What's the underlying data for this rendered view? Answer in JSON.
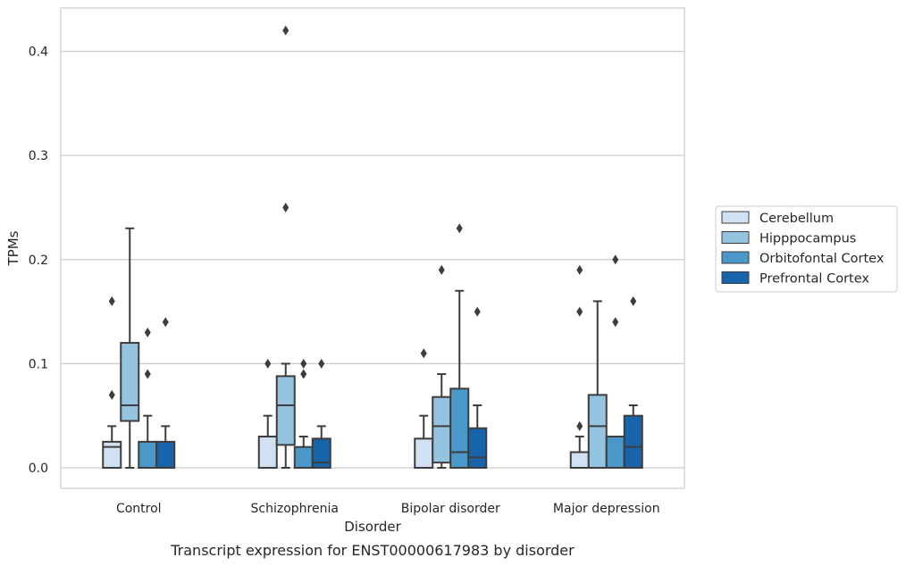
{
  "chart_data": {
    "type": "box",
    "caption": "Transcript expression for ENST00000617983 by disorder",
    "xlabel": "Disorder",
    "ylabel": "TPMs",
    "ylim": [
      -0.02,
      0.442
    ],
    "yticks": [
      0.0,
      0.1,
      0.2,
      0.3,
      0.4
    ],
    "ytick_labels": [
      "0.0",
      "0.1",
      "0.2",
      "0.3",
      "0.4"
    ],
    "grid": "horizontal",
    "legend_position": "right",
    "categories": [
      "Control",
      "Schizophrenia",
      "Bipolar disorder",
      "Major depression"
    ],
    "series": [
      {
        "name": "Cerebellum",
        "color": "#d0e1f2",
        "boxes": [
          {
            "whisker_low": 0.0,
            "q1": 0.0,
            "median": 0.02,
            "q3": 0.025,
            "whisker_high": 0.04,
            "outliers": [
              0.07,
              0.16
            ]
          },
          {
            "whisker_low": 0.0,
            "q1": 0.0,
            "median": 0.0,
            "q3": 0.03,
            "whisker_high": 0.05,
            "outliers": [
              0.1
            ]
          },
          {
            "whisker_low": 0.0,
            "q1": 0.0,
            "median": 0.0,
            "q3": 0.028,
            "whisker_high": 0.05,
            "outliers": [
              0.11
            ]
          },
          {
            "whisker_low": 0.0,
            "q1": 0.0,
            "median": 0.0,
            "q3": 0.015,
            "whisker_high": 0.03,
            "outliers": [
              0.04,
              0.15,
              0.19
            ]
          }
        ]
      },
      {
        "name": "Hipppocampus",
        "color": "#94c4df",
        "boxes": [
          {
            "whisker_low": 0.0,
            "q1": 0.045,
            "median": 0.06,
            "q3": 0.12,
            "whisker_high": 0.23,
            "outliers": []
          },
          {
            "whisker_low": 0.0,
            "q1": 0.022,
            "median": 0.06,
            "q3": 0.088,
            "whisker_high": 0.1,
            "outliers": [
              0.25,
              0.42
            ]
          },
          {
            "whisker_low": 0.0,
            "q1": 0.005,
            "median": 0.04,
            "q3": 0.068,
            "whisker_high": 0.09,
            "outliers": [
              0.19
            ]
          },
          {
            "whisker_low": 0.0,
            "q1": 0.0,
            "median": 0.04,
            "q3": 0.07,
            "whisker_high": 0.16,
            "outliers": []
          }
        ]
      },
      {
        "name": "Orbitofontal Cortex",
        "color": "#4a98c9",
        "boxes": [
          {
            "whisker_low": 0.0,
            "q1": 0.0,
            "median": 0.0,
            "q3": 0.025,
            "whisker_high": 0.05,
            "outliers": [
              0.09,
              0.13
            ]
          },
          {
            "whisker_low": 0.0,
            "q1": 0.0,
            "median": 0.0,
            "q3": 0.02,
            "whisker_high": 0.03,
            "outliers": [
              0.09,
              0.1
            ]
          },
          {
            "whisker_low": 0.0,
            "q1": 0.0,
            "median": 0.015,
            "q3": 0.076,
            "whisker_high": 0.17,
            "outliers": [
              0.23
            ]
          },
          {
            "whisker_low": 0.0,
            "q1": 0.0,
            "median": 0.0,
            "q3": 0.03,
            "whisker_high": 0.03,
            "outliers": [
              0.14,
              0.2
            ]
          }
        ]
      },
      {
        "name": "Prefrontal Cortex",
        "color": "#1764ab",
        "boxes": [
          {
            "whisker_low": 0.0,
            "q1": 0.0,
            "median": 0.0,
            "q3": 0.025,
            "whisker_high": 0.04,
            "outliers": [
              0.14
            ]
          },
          {
            "whisker_low": 0.0,
            "q1": 0.0,
            "median": 0.005,
            "q3": 0.028,
            "whisker_high": 0.04,
            "outliers": [
              0.1
            ]
          },
          {
            "whisker_low": 0.0,
            "q1": 0.0,
            "median": 0.01,
            "q3": 0.038,
            "whisker_high": 0.06,
            "outliers": [
              0.15
            ]
          },
          {
            "whisker_low": 0.0,
            "q1": 0.0,
            "median": 0.02,
            "q3": 0.05,
            "whisker_high": 0.06,
            "outliers": [
              0.16
            ]
          }
        ]
      }
    ]
  }
}
